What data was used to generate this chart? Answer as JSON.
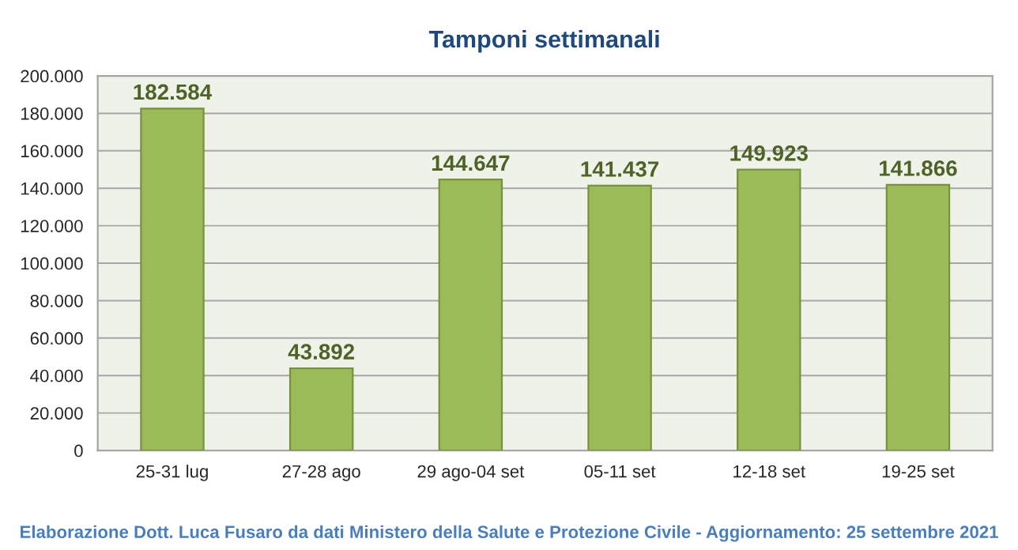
{
  "chart_data": {
    "type": "bar",
    "title": "Tamponi settimanali",
    "categories": [
      "25-31 lug",
      "27-28 ago",
      "29 ago-04 set",
      "05-11 set",
      "12-18 set",
      "19-25 set"
    ],
    "values": [
      182584,
      43892,
      144647,
      141437,
      149923,
      141866
    ],
    "value_labels": [
      "182.584",
      "43.892",
      "144.647",
      "141.437",
      "149.923",
      "141.866"
    ],
    "color": "#9bbb59",
    "ylim": [
      0,
      200000
    ],
    "yticks": [
      0,
      {
        "value": 20000,
        "label": "20.000"
      },
      {
        "value": 40000,
        "label": "40.000"
      },
      {
        "value": 60000,
        "label": "60.000"
      },
      {
        "value": 80000,
        "label": "80.000"
      },
      {
        "value": 100000,
        "label": "100.000"
      },
      {
        "value": 120000,
        "label": "120.000"
      },
      {
        "value": 140000,
        "label": "140.000"
      },
      {
        "value": 160000,
        "label": "160.000"
      },
      {
        "value": 180000,
        "label": "180.000"
      },
      {
        "value": 200000,
        "label": "200.000"
      }
    ],
    "grid": "y",
    "legend": false,
    "annotations": [
      "Elaborazione Dott. Luca Fusaro da dati Ministero della Salute e Protezione Civile - Aggiornamento: 25 settembre 2021"
    ]
  }
}
